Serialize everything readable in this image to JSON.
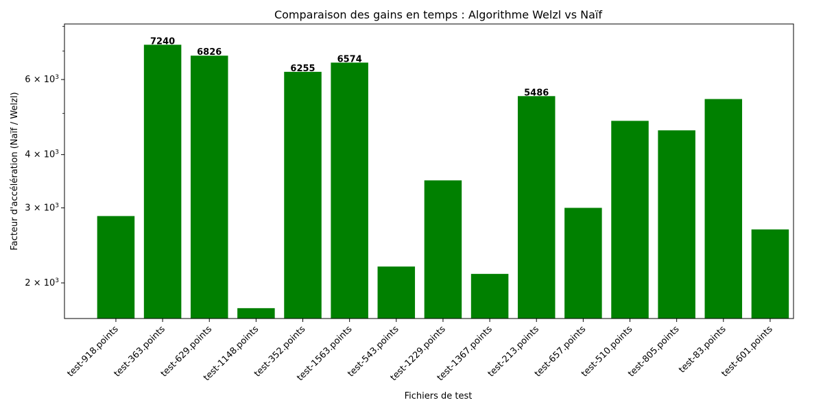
{
  "chart_data": {
    "type": "bar",
    "title": "Comparaison des gains en temps : Algorithme Welzl vs Naïf",
    "xlabel": "Fichiers de test",
    "ylabel": "Facteur d'accélération (Naïf / Welzl)",
    "yscale": "log",
    "ylim": [
      1650,
      8100
    ],
    "yticks": [
      {
        "value": 2000,
        "base": "2",
        "exp": "3"
      },
      {
        "value": 3000,
        "base": "3",
        "exp": "3"
      },
      {
        "value": 4000,
        "base": "4",
        "exp": "3"
      },
      {
        "value": 6000,
        "base": "6",
        "exp": "3"
      }
    ],
    "minor_yticks": [
      5000,
      7000,
      8000
    ],
    "grid": false,
    "bar_color": "#008000",
    "categories": [
      "test-918.points",
      "test-363.points",
      "test-629.points",
      "test-1148.points",
      "test-352.points",
      "test-1563.points",
      "test-543.points",
      "test-1229.points",
      "test-1367.points",
      "test-213.points",
      "test-657.points",
      "test-510.points",
      "test-805.points",
      "test-83.points",
      "test-601.points"
    ],
    "values": [
      2870,
      7240,
      6826,
      1745,
      6255,
      6574,
      2185,
      3480,
      2100,
      5486,
      3000,
      4800,
      4560,
      5400,
      2670
    ],
    "data_labels": [
      "",
      "7240",
      "6826",
      "",
      "6255",
      "6574",
      "",
      "",
      "",
      "5486",
      "",
      "",
      "",
      "",
      ""
    ]
  }
}
